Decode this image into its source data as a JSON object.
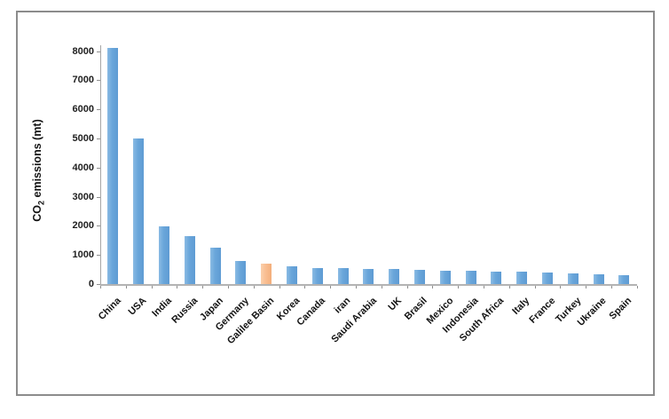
{
  "chart_data": {
    "type": "bar",
    "title": "",
    "ylabel": {
      "prefix": "CO",
      "sub": "2",
      "suffix": " emissions (mt)"
    },
    "xlabel": "",
    "categories": [
      "China",
      "USA",
      "India",
      "Russia",
      "Japan",
      "Germany",
      "Galilee Basin",
      "Korea",
      "Canada",
      "iran",
      "Saudi Arabia",
      "UK",
      "Brasil",
      "Mexico",
      "Indonesia",
      "South Africa",
      "Italy",
      "France",
      "Turkey",
      "Ukraine",
      "Spain"
    ],
    "values": [
      8100,
      5000,
      1970,
      1660,
      1240,
      800,
      705,
      600,
      550,
      540,
      520,
      510,
      490,
      470,
      460,
      430,
      420,
      400,
      360,
      330,
      310
    ],
    "highlight_category": "Galilee Basin",
    "bar_color": "#6fa8dc",
    "highlight_color": "#fac090",
    "ylim": [
      0,
      8200
    ],
    "yticks": [
      0,
      1000,
      2000,
      3000,
      4000,
      5000,
      6000,
      7000,
      8000
    ],
    "grid": "off",
    "legend": "none"
  }
}
